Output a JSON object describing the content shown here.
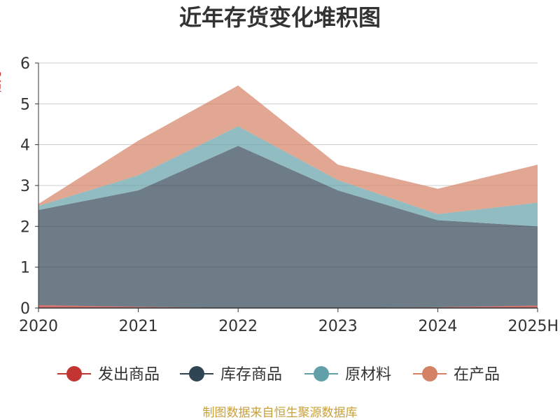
{
  "chart_data": {
    "type": "area",
    "stacked": true,
    "title": "近年存货变化堆积图",
    "ylabel": "亿元",
    "categories": [
      "2020",
      "2021",
      "2022",
      "2023",
      "2024",
      "2025H"
    ],
    "ylim": [
      0,
      6
    ],
    "yticks": [
      0,
      1,
      2,
      3,
      4,
      5,
      6
    ],
    "grid": true,
    "legend_position": "bottom",
    "series": [
      {
        "name": "发出商品",
        "color": "#c23531",
        "values": [
          0.07,
          0.03,
          0.0,
          0.0,
          0.02,
          0.06
        ]
      },
      {
        "name": "库存商品",
        "color": "#2f4554",
        "values": [
          2.33,
          2.85,
          3.97,
          2.88,
          2.13,
          1.94
        ]
      },
      {
        "name": "原材料",
        "color": "#61a0a8",
        "values": [
          0.1,
          0.37,
          0.48,
          0.25,
          0.15,
          0.58
        ]
      },
      {
        "name": "在产品",
        "color": "#d48265",
        "values": [
          0.05,
          0.85,
          1.0,
          0.38,
          0.62,
          0.93
        ]
      }
    ],
    "source": "制图数据来自恒生聚源数据库"
  }
}
